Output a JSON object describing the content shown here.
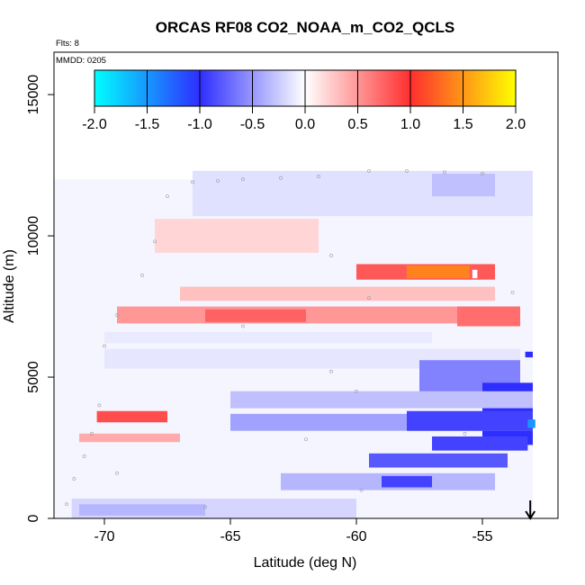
{
  "chart_data": {
    "type": "heatmap",
    "title": "ORCAS RF08 CO2_NOAA_m_CO2_QCLS",
    "subtitle_flights": "Flts: 8",
    "subtitle_date": "MMDD: 0205",
    "xlabel": "Latitude (deg N)",
    "ylabel": "Altitude (m)",
    "xlim": [
      -72,
      -52
    ],
    "ylim": [
      0,
      16500
    ],
    "xticks": [
      -70,
      -65,
      -60,
      -55
    ],
    "xtick_labels": [
      "-70",
      "-65",
      "-60",
      "-55"
    ],
    "yticks": [
      0,
      5000,
      10000,
      15000
    ],
    "ytick_labels": [
      "0",
      "5000",
      "10000",
      "15000"
    ],
    "colorbar": {
      "range": [
        -2.0,
        2.0
      ],
      "ticks": [
        -2.0,
        -1.5,
        -1.0,
        -0.5,
        0.0,
        0.5,
        1.0,
        1.5,
        2.0
      ],
      "tick_labels": [
        "-2.0",
        "-1.5",
        "-1.0",
        "-0.5",
        "0.0",
        "0.5",
        "1.0",
        "1.5",
        "2.0"
      ],
      "colors": [
        "#00ffff",
        "#2e2eff",
        "#ffffff",
        "#ff2e2e",
        "#ffff00"
      ],
      "placement": "top-inside"
    },
    "layers": [
      {
        "lat_range": [
          -72,
          -53
        ],
        "alt_range": [
          0,
          12000
        ],
        "value": -0.05
      },
      {
        "lat_range": [
          -66.5,
          -53
        ],
        "alt_range": [
          10700,
          12300
        ],
        "value": -0.15
      },
      {
        "lat_range": [
          -57,
          -54.5
        ],
        "alt_range": [
          11400,
          12200
        ],
        "value": -0.3
      },
      {
        "lat_range": [
          -68,
          -61.5
        ],
        "alt_range": [
          9400,
          10600
        ],
        "value": 0.2
      },
      {
        "lat_range": [
          -60,
          -54.5
        ],
        "alt_range": [
          8450,
          9000
        ],
        "value": 0.8
      },
      {
        "lat_range": [
          -58,
          -55.5
        ],
        "alt_range": [
          8500,
          8950
        ],
        "value": 1.4
      },
      {
        "lat_range": [
          -67,
          -54.5
        ],
        "alt_range": [
          7700,
          8200
        ],
        "value": 0.3
      },
      {
        "lat_range": [
          -69.5,
          -53.5
        ],
        "alt_range": [
          6900,
          7500
        ],
        "value": 0.5
      },
      {
        "lat_range": [
          -66,
          -62
        ],
        "alt_range": [
          6950,
          7400
        ],
        "value": 0.75
      },
      {
        "lat_range": [
          -56,
          -53.5
        ],
        "alt_range": [
          6800,
          7500
        ],
        "value": 0.7
      },
      {
        "lat_range": [
          -70,
          -57
        ],
        "alt_range": [
          6200,
          6600
        ],
        "value": -0.1
      },
      {
        "lat_range": [
          -70,
          -53.5
        ],
        "alt_range": [
          5300,
          6000
        ],
        "value": -0.12
      },
      {
        "lat_range": [
          -57.5,
          -53.5
        ],
        "alt_range": [
          4300,
          5600
        ],
        "value": -0.6
      },
      {
        "lat_range": [
          -55,
          -53
        ],
        "alt_range": [
          2600,
          4800
        ],
        "value": -1.0
      },
      {
        "lat_range": [
          -65,
          -53
        ],
        "alt_range": [
          3900,
          4500
        ],
        "value": -0.3
      },
      {
        "lat_range": [
          -65,
          -53
        ],
        "alt_range": [
          3100,
          3700
        ],
        "value": -0.45
      },
      {
        "lat_range": [
          -58,
          -53
        ],
        "alt_range": [
          3100,
          3800
        ],
        "value": -0.9
      },
      {
        "lat_range": [
          -57,
          -53.2
        ],
        "alt_range": [
          2400,
          2900
        ],
        "value": -0.9
      },
      {
        "lat_range": [
          -59.5,
          -54
        ],
        "alt_range": [
          1800,
          2300
        ],
        "value": -0.8
      },
      {
        "lat_range": [
          -63,
          -54.5
        ],
        "alt_range": [
          1000,
          1600
        ],
        "value": -0.35
      },
      {
        "lat_range": [
          -59,
          -57
        ],
        "alt_range": [
          1100,
          1500
        ],
        "value": -0.9
      },
      {
        "lat_range": [
          -71,
          -67
        ],
        "alt_range": [
          2700,
          3000
        ],
        "value": 0.4
      },
      {
        "lat_range": [
          -70.3,
          -67.5
        ],
        "alt_range": [
          3400,
          3800
        ],
        "value": 0.85
      },
      {
        "lat_range": [
          -71.3,
          -60
        ],
        "alt_range": [
          0,
          700
        ],
        "value": -0.2
      },
      {
        "lat_range": [
          -71,
          -66
        ],
        "alt_range": [
          100,
          500
        ],
        "value": -0.35
      },
      {
        "lat_range": [
          -53.2,
          -52.9
        ],
        "alt_range": [
          3200,
          3500
        ],
        "value": -1.5
      },
      {
        "lat_range": [
          -53.3,
          -53.0
        ],
        "alt_range": [
          5700,
          5900
        ],
        "value": -1.0
      },
      {
        "lat_range": [
          -55.4,
          -55.2
        ],
        "alt_range": [
          8500,
          8800
        ],
        "value": 0.0
      }
    ],
    "sample_points": [
      [
        -66.5,
        11900
      ],
      [
        -65.5,
        11950
      ],
      [
        -64.5,
        12000
      ],
      [
        -63,
        12050
      ],
      [
        -61.5,
        12100
      ],
      [
        -59.5,
        12300
      ],
      [
        -58,
        12300
      ],
      [
        -56.5,
        12250
      ],
      [
        -55,
        12200
      ],
      [
        -67.5,
        11400
      ],
      [
        -68,
        9800
      ],
      [
        -68.5,
        8600
      ],
      [
        -69.5,
        7200
      ],
      [
        -70,
        6100
      ],
      [
        -70.2,
        4000
      ],
      [
        -70.5,
        3000
      ],
      [
        -70.8,
        2200
      ],
      [
        -71.2,
        1400
      ],
      [
        -71.5,
        500
      ],
      [
        -61,
        9300
      ],
      [
        -59.5,
        7800
      ],
      [
        -64.5,
        6800
      ],
      [
        -61,
        5200
      ],
      [
        -60,
        4500
      ],
      [
        -62,
        2800
      ],
      [
        -59.8,
        1000
      ],
      [
        -55.7,
        3000
      ],
      [
        -53.8,
        8000
      ],
      [
        -69.5,
        1600
      ],
      [
        -66,
        400
      ]
    ],
    "annotations": {
      "arrow_latitude": -53.1,
      "arrow_direction": "down"
    }
  }
}
